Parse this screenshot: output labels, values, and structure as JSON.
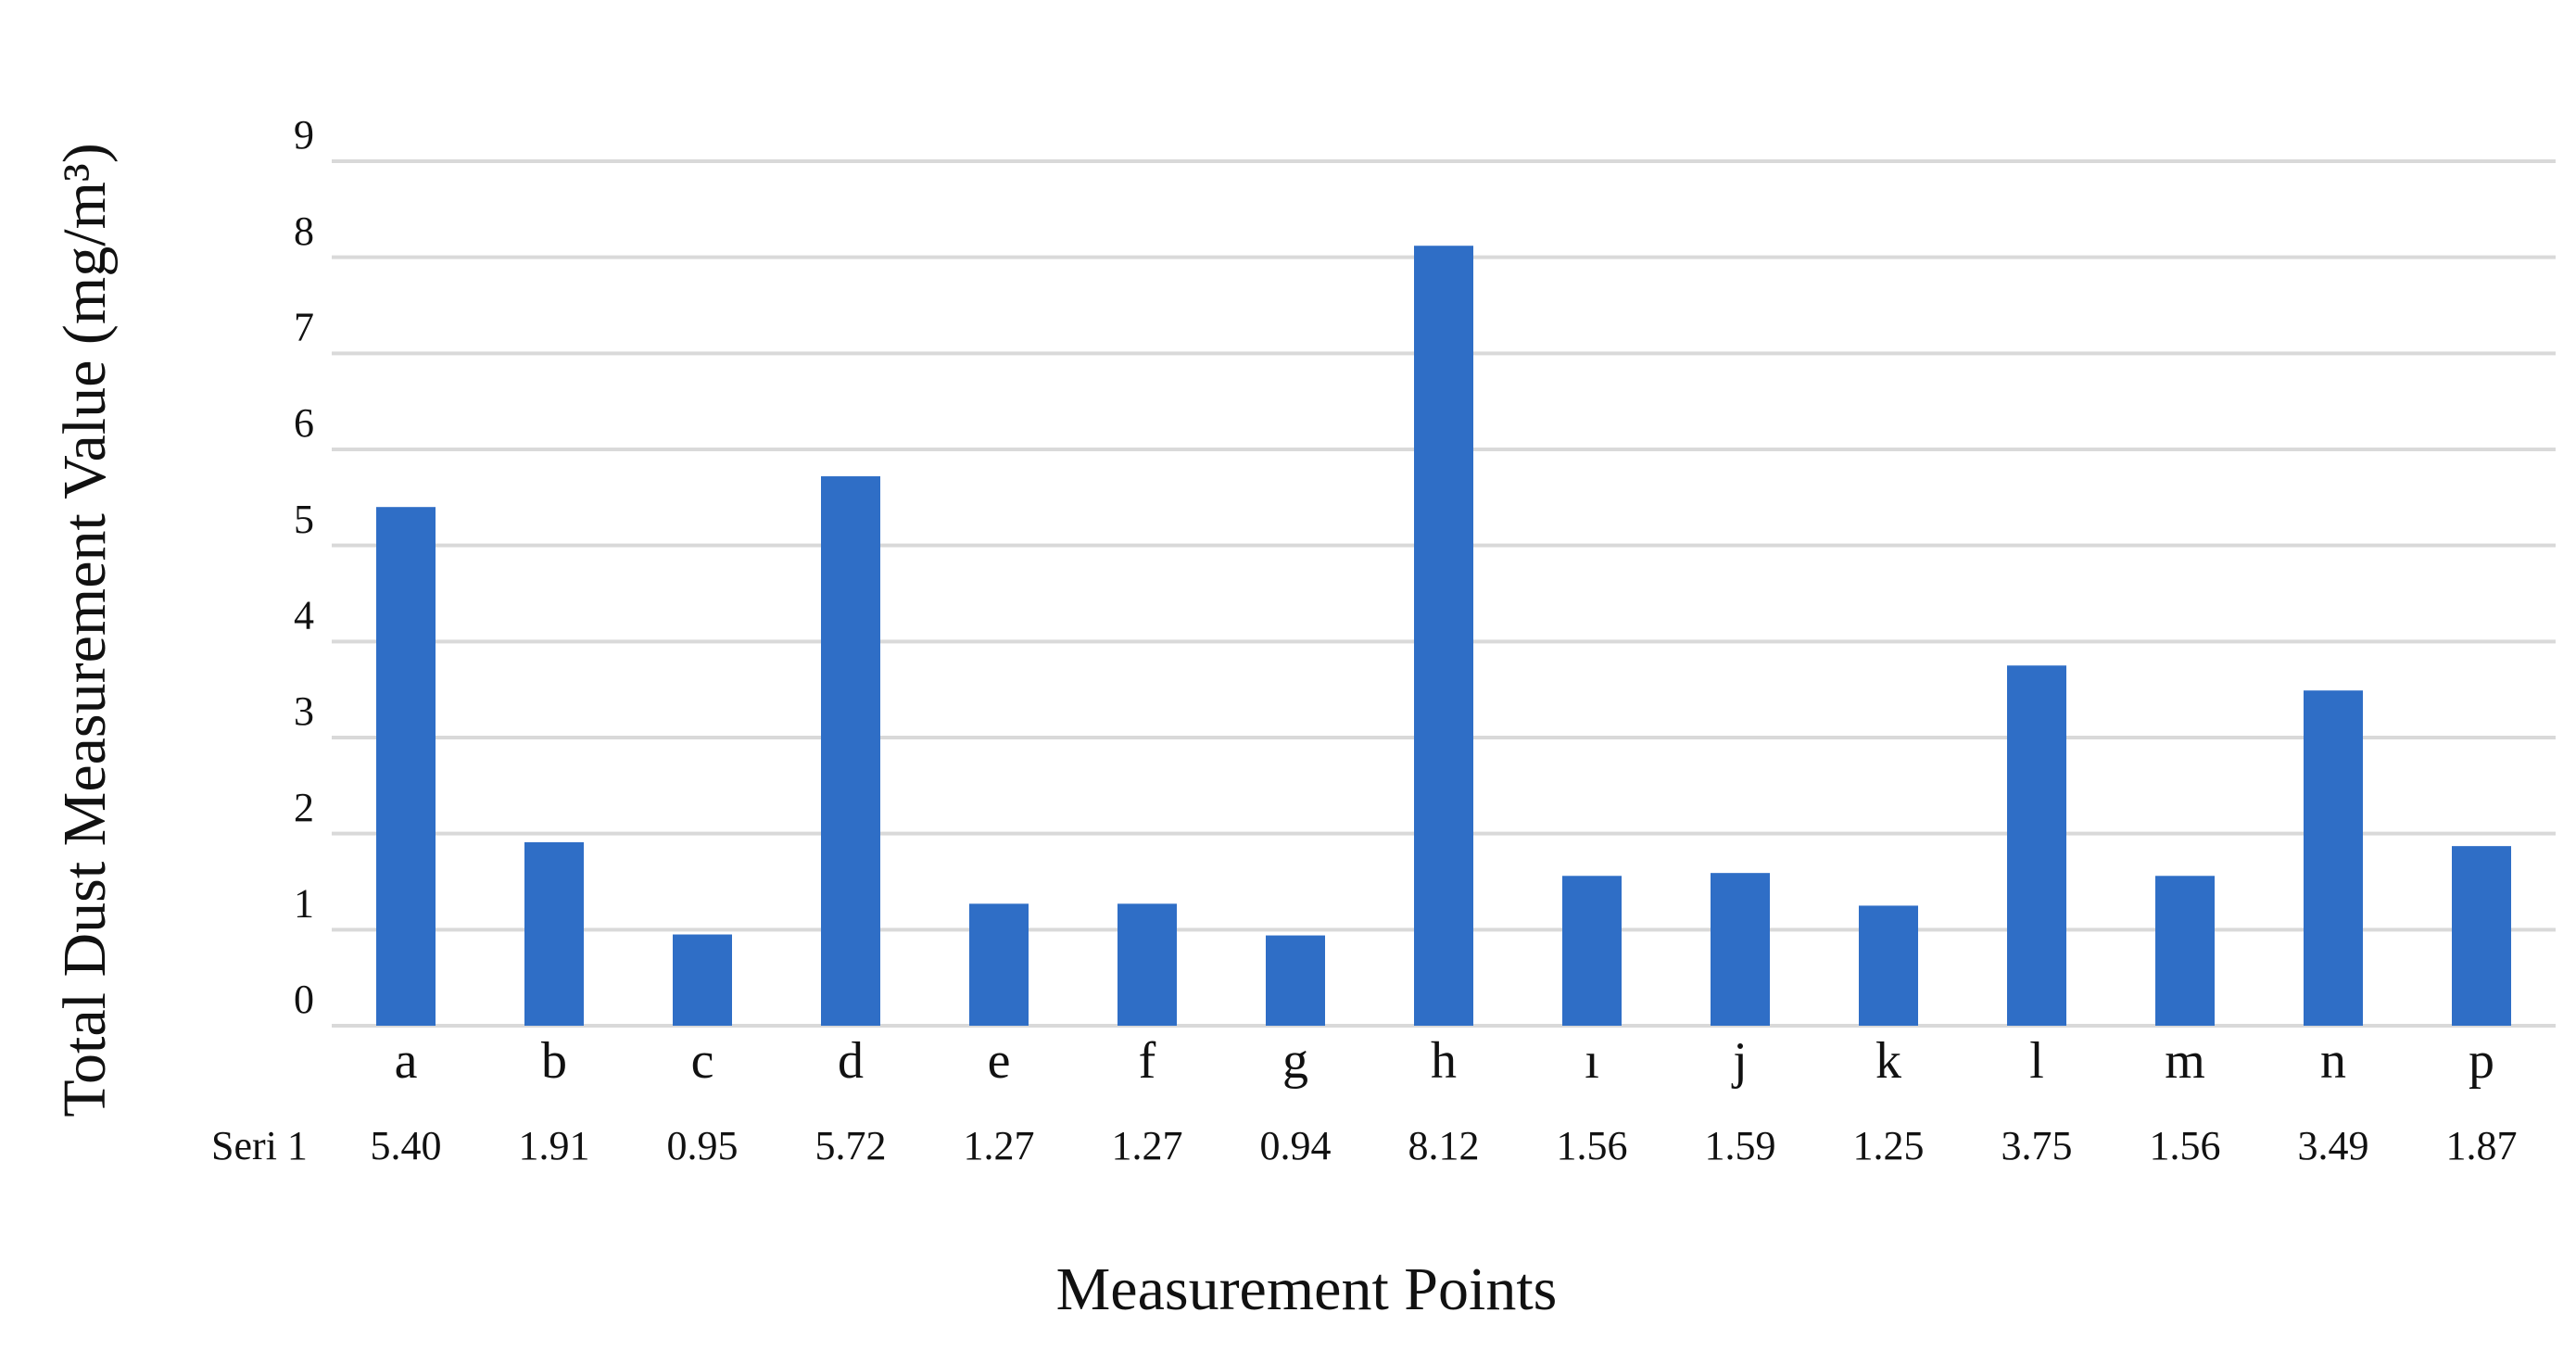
{
  "chart_data": {
    "type": "bar",
    "x_label": "Measurement Points",
    "y_label": "Total Dust Measurement Value (mg/m³)",
    "categories": [
      "a",
      "b",
      "c",
      "d",
      "e",
      "f",
      "g",
      "h",
      "ı",
      "j",
      "k",
      "l",
      "m",
      "n",
      "p"
    ],
    "series": [
      {
        "name": "Seri 1",
        "color": "#2f6ec6",
        "values": [
          5.4,
          1.91,
          0.95,
          5.72,
          1.27,
          1.27,
          0.94,
          8.12,
          1.56,
          1.59,
          1.25,
          3.75,
          1.56,
          3.49,
          1.87
        ],
        "value_labels": [
          "5.40",
          "1.91",
          "0.95",
          "5.72",
          "1.27",
          "1.27",
          "0.94",
          "8.12",
          "1.56",
          "1.59",
          "1.25",
          "3.75",
          "1.56",
          "3.49",
          "1.87"
        ]
      }
    ],
    "ylim": [
      0,
      9
    ],
    "yticks": [
      0,
      1,
      2,
      3,
      4,
      5,
      6,
      7,
      8,
      9
    ],
    "grid": true
  }
}
